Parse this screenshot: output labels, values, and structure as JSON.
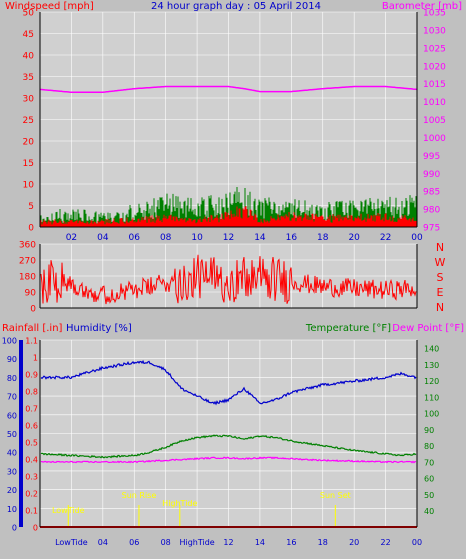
{
  "header": {
    "left_label": "Windspeed [mph]",
    "title": "24 hour graph day : 05 April 2014",
    "right_label": "Barometer [mb]"
  },
  "colors": {
    "background": "#c0c0c0",
    "plot_bg": "#d0d0d0",
    "grid": "#ffffff",
    "wind": "#ff0000",
    "gust": "#008000",
    "barometer": "#ff00ff",
    "direction": "#ff0000",
    "humidity": "#0000cc",
    "temperature": "#008000",
    "dewpoint": "#ff00ff",
    "rainfall": "#ff0000",
    "events": "#ffff00"
  },
  "x_ticks": [
    "02",
    "04",
    "06",
    "08",
    "10",
    "12",
    "14",
    "16",
    "18",
    "20",
    "22",
    "00"
  ],
  "bottom_x_ticks": [
    "LowTide",
    "04",
    "06",
    "08",
    "HighTide",
    "12",
    "14",
    "16",
    "18",
    "20",
    "22",
    "00"
  ],
  "panels": {
    "wind": {
      "left_ticks": [
        "50",
        "45",
        "40",
        "35",
        "30",
        "25",
        "20",
        "15",
        "10",
        "5",
        "0"
      ],
      "right_ticks": [
        "1035",
        "1030",
        "1025",
        "1020",
        "1015",
        "1010",
        "1005",
        "1000",
        "995",
        "990",
        "985",
        "980",
        "975"
      ]
    },
    "direction": {
      "left_ticks": [
        "360",
        "270",
        "180",
        "90",
        "0"
      ],
      "compass": [
        "N",
        "W",
        "S",
        "E",
        "N"
      ]
    },
    "climate": {
      "rain_label": "Rainfall [.in]",
      "humidity_label": "Humidity [%]",
      "temp_label": "Temperature [°F]",
      "dew_label": "Dew Point [°F]",
      "rain_ticks": [
        "1.1",
        "1",
        "0.9",
        "0.8",
        "0.7",
        "0.6",
        "0.5",
        "0.4",
        "0.3",
        "0.2",
        "0.1",
        "0"
      ],
      "humidity_ticks": [
        "100",
        "90",
        "80",
        "70",
        "60",
        "50",
        "40",
        "30",
        "20",
        "10",
        "0"
      ],
      "temp_ticks": [
        "140",
        "130",
        "120",
        "110",
        "100",
        "90",
        "80",
        "70",
        "60",
        "50",
        "40"
      ]
    }
  },
  "events": [
    {
      "label": "LowTide",
      "hour": 1.8
    },
    {
      "label": "Sun Rise",
      "hour": 6.3
    },
    {
      "label": "HighTide",
      "hour": 8.9
    },
    {
      "label": "Sun Set",
      "hour": 18.8
    }
  ],
  "chart_data": [
    {
      "type": "line",
      "title": "24 hour graph day : 05 April 2014",
      "ylabel": "Windspeed [mph]",
      "ylabel_right": "Barometer [mb]",
      "ylim": [
        0,
        50
      ],
      "ylim_right": [
        975,
        1035
      ],
      "x": [
        0,
        2,
        4,
        6,
        8,
        10,
        12,
        13,
        14,
        16,
        18,
        20,
        22,
        24
      ],
      "series": [
        {
          "values": [
            1.5,
            1.5,
            1.5,
            2,
            2.5,
            2,
            3,
            5,
            2,
            3,
            2.5,
            2.5,
            3,
            2
          ]
        },
        {
          "values": [
            3,
            4,
            3,
            5,
            7,
            6,
            7,
            10,
            6,
            6,
            5,
            6,
            6,
            7
          ]
        },
        {
          "values": [
            1013.4,
            1012.6,
            1012.6,
            1013.6,
            1014.2,
            1014.2,
            1014.2,
            1013.6,
            1012.8,
            1012.8,
            1013.6,
            1014.2,
            1014.2,
            1013.4
          ]
        }
      ]
    },
    {
      "type": "line",
      "ylim": [
        0,
        360
      ],
      "x": [
        0,
        1,
        2,
        3,
        4,
        6,
        8,
        10,
        12,
        14,
        16,
        18,
        20,
        22,
        24
      ],
      "series": [
        {
          "values": [
            150,
            160,
            140,
            100,
            70,
            100,
            140,
            170,
            160,
            170,
            150,
            120,
            110,
            100,
            110
          ]
        }
      ]
    },
    {
      "type": "line",
      "x": [
        0,
        2,
        4,
        6,
        7,
        8,
        9,
        10,
        11,
        12,
        13,
        14,
        15,
        16,
        18,
        20,
        22,
        23,
        24
      ],
      "series": [
        {
          "values": [
            80,
            80,
            85,
            88,
            88,
            84,
            74,
            70,
            66,
            68,
            74,
            66,
            68,
            72,
            76,
            78,
            80,
            82,
            80
          ]
        },
        {
          "values": [
            75,
            74,
            73,
            74,
            76,
            79,
            83,
            85,
            86,
            86,
            84,
            86,
            85,
            83,
            80,
            77,
            75,
            74,
            75
          ]
        },
        {
          "values": [
            70,
            70,
            70,
            70,
            70.5,
            71,
            71.5,
            72,
            72.5,
            72.5,
            72,
            72.5,
            72.5,
            72,
            71,
            70.5,
            70,
            70,
            70
          ]
        },
        {
          "values": [
            0,
            0,
            0,
            0,
            0,
            0,
            0,
            0,
            0,
            0,
            0,
            0,
            0,
            0,
            0,
            0,
            0,
            0,
            0
          ]
        }
      ],
      "ylim": [
        0,
        100
      ],
      "ylim_temperature": [
        30,
        145
      ],
      "ylim_rainfall": [
        0,
        1.1
      ]
    }
  ]
}
